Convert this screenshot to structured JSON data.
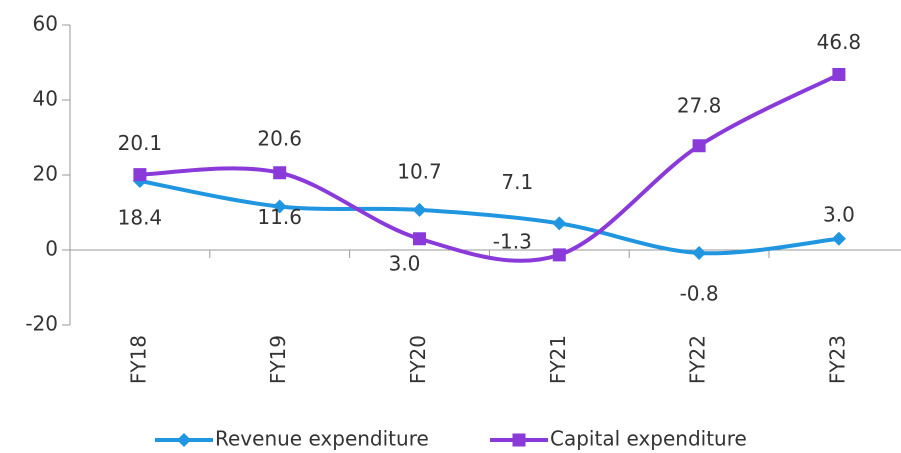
{
  "chart_data": {
    "type": "line",
    "categories": [
      "FY18",
      "FY19",
      "FY20",
      "FY21",
      "FY22",
      "FY23"
    ],
    "series": [
      {
        "name": "Revenue expenditure",
        "color": "#2196e0",
        "marker": "diamond",
        "values": [
          18.4,
          11.6,
          10.7,
          7.1,
          -0.8,
          3.0
        ],
        "value_labels": [
          "18.4",
          "11.6",
          "10.7",
          "7.1",
          "-0.8",
          "3.0"
        ]
      },
      {
        "name": "Capital expenditure",
        "color": "#8a3ad9",
        "marker": "square",
        "values": [
          20.1,
          20.6,
          3.0,
          -1.3,
          27.8,
          46.8
        ],
        "value_labels": [
          "20.1",
          "20.6",
          "3.0",
          "-1.3",
          "27.8",
          "46.8"
        ]
      }
    ],
    "ylim": [
      -20,
      60
    ],
    "yticks": [
      -20,
      0,
      20,
      40,
      60
    ],
    "smooth": true,
    "legend": "bottom"
  }
}
